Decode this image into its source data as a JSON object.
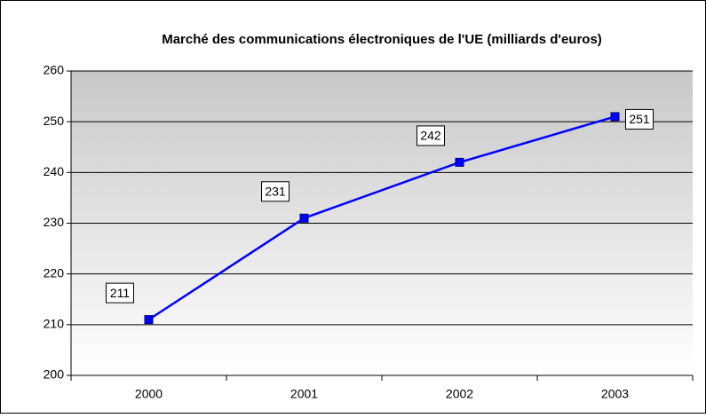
{
  "chart_data": {
    "type": "line",
    "title": "Marché des communications électroniques de l'UE (milliards d'euros)",
    "categories": [
      "2000",
      "2001",
      "2002",
      "2003"
    ],
    "series": [
      {
        "name": "Marché",
        "color": "#0000ff",
        "values": [
          211,
          231,
          242,
          251
        ]
      }
    ],
    "ylim": [
      200,
      260
    ],
    "yticks": [
      200,
      210,
      220,
      230,
      240,
      250,
      260
    ],
    "grid": true
  }
}
